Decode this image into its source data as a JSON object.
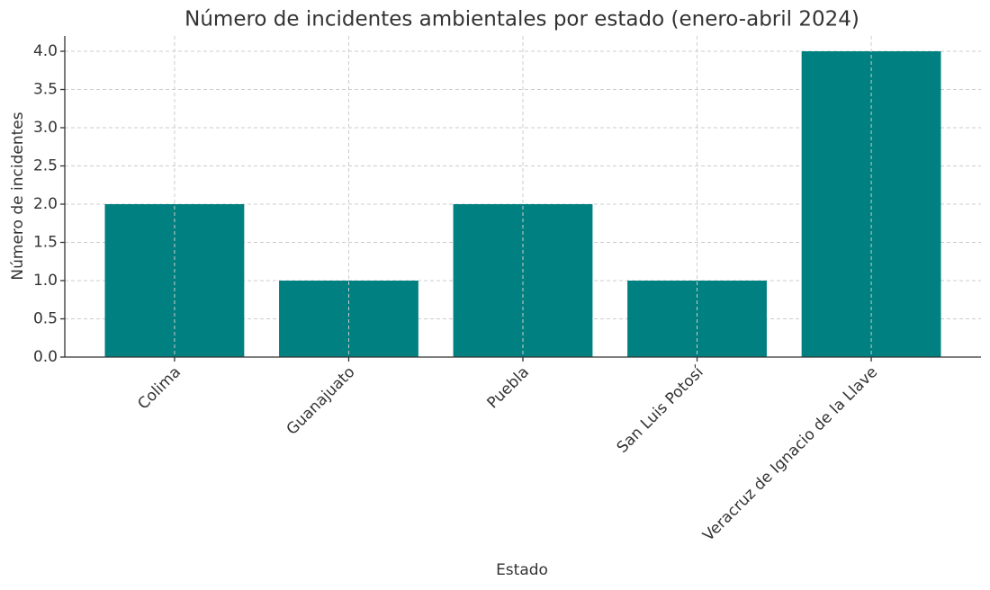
{
  "chart_data": {
    "type": "bar",
    "title": "Número de incidentes ambientales por estado (enero-abril 2024)",
    "x_label": "Estado",
    "y_label": "Número de incidentes",
    "categories": [
      "Colima",
      "Guanajuato",
      "Puebla",
      "San Luis Potosí",
      "Veracruz de Ignacio de la Llave"
    ],
    "values": [
      2,
      1,
      2,
      1,
      4
    ],
    "color": "#008080",
    "ylim": [
      0,
      4.2
    ],
    "yticks": [
      {
        "value": 0,
        "label": "0.0"
      },
      0.5,
      {
        "value": 1,
        "label": "1.0"
      },
      1.5,
      {
        "value": 2,
        "label": "2.0"
      },
      2.5,
      {
        "value": 3,
        "label": "3.0"
      },
      3.5,
      {
        "value": 4,
        "label": "4.0"
      }
    ],
    "grid": true
  }
}
